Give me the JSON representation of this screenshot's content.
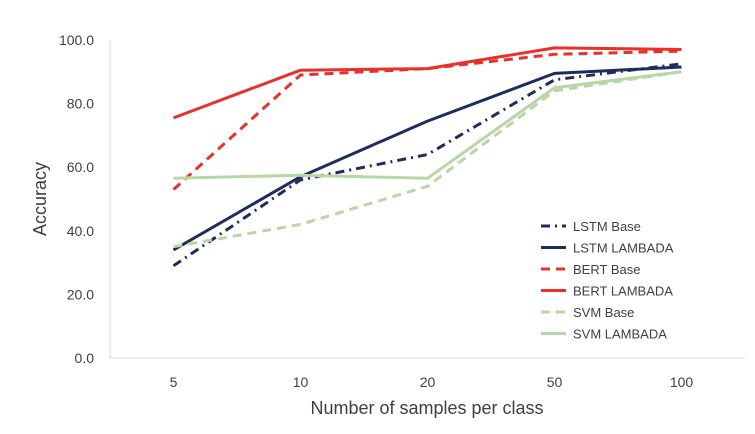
{
  "chart_data": {
    "type": "line",
    "categories": [
      "5",
      "10",
      "20",
      "50",
      "100"
    ],
    "xlabel": "Number of samples per class",
    "ylabel": "Accuracy",
    "ylim": [
      0,
      100
    ],
    "yticks": [
      "0.0",
      "20.0",
      "40.0",
      "60.0",
      "80.0",
      "100.0"
    ],
    "grid": false,
    "legend_position": "bottom-right",
    "series": [
      {
        "name": "LSTM Base",
        "color": "#1f2d5c",
        "dash": "dashdot",
        "values": [
          29.0,
          56.0,
          64.0,
          87.5,
          92.5
        ]
      },
      {
        "name": "LSTM LAMBADA",
        "color": "#1f2d5c",
        "dash": "solid",
        "values": [
          34.0,
          57.0,
          74.5,
          89.5,
          91.5
        ]
      },
      {
        "name": "BERT Base",
        "color": "#e8312a",
        "dash": "dash",
        "values": [
          53.0,
          89.0,
          91.0,
          95.5,
          96.5
        ]
      },
      {
        "name": "BERT LAMBADA",
        "color": "#e8312a",
        "dash": "solid",
        "values": [
          75.5,
          90.5,
          91.0,
          97.5,
          97.0
        ]
      },
      {
        "name": "SVM Base",
        "color": "#b9d7a6",
        "dash": "dash",
        "values": [
          35.0,
          42.0,
          54.0,
          84.0,
          90.0
        ]
      },
      {
        "name": "SVM LAMBADA",
        "color": "#b9d7a6",
        "dash": "solid",
        "values": [
          56.5,
          57.5,
          56.5,
          85.0,
          90.0
        ]
      }
    ]
  }
}
